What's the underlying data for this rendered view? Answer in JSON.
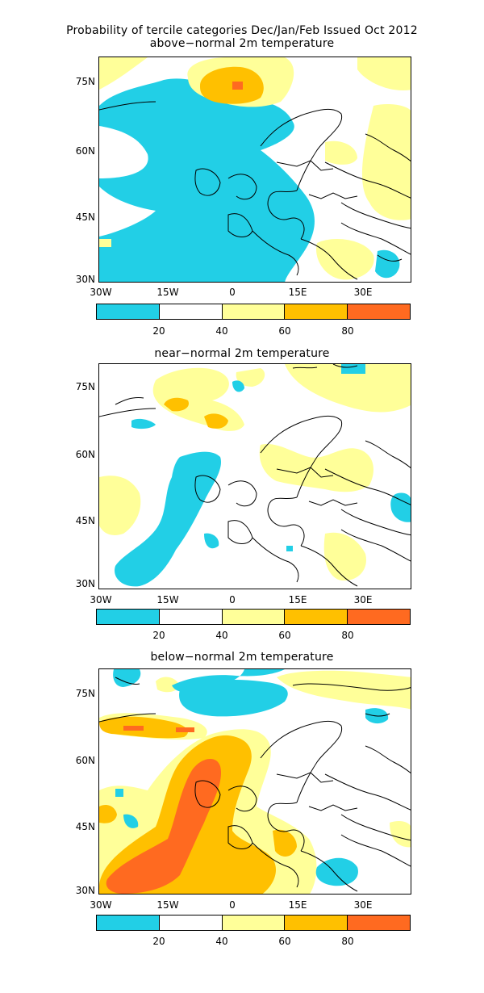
{
  "figure": {
    "title": "Probability of tercile categories Dec/Jan/Feb Issued Oct 2012"
  },
  "panels": [
    {
      "subtitle": "above−normal 2m temperature"
    },
    {
      "subtitle": "near−normal 2m temperature"
    },
    {
      "subtitle": "below−normal 2m temperature"
    }
  ],
  "axes": {
    "lat_labels": [
      "75N",
      "60N",
      "45N",
      "30N"
    ],
    "lon_labels": [
      "30W",
      "15W",
      "0",
      "15E",
      "30E"
    ]
  },
  "colorbar": {
    "colors": [
      "#22cfe6",
      "#ffffff",
      "#ffff99",
      "#ffc000",
      "#ff6a20"
    ],
    "labels": [
      "20",
      "40",
      "60",
      "80"
    ]
  }
}
